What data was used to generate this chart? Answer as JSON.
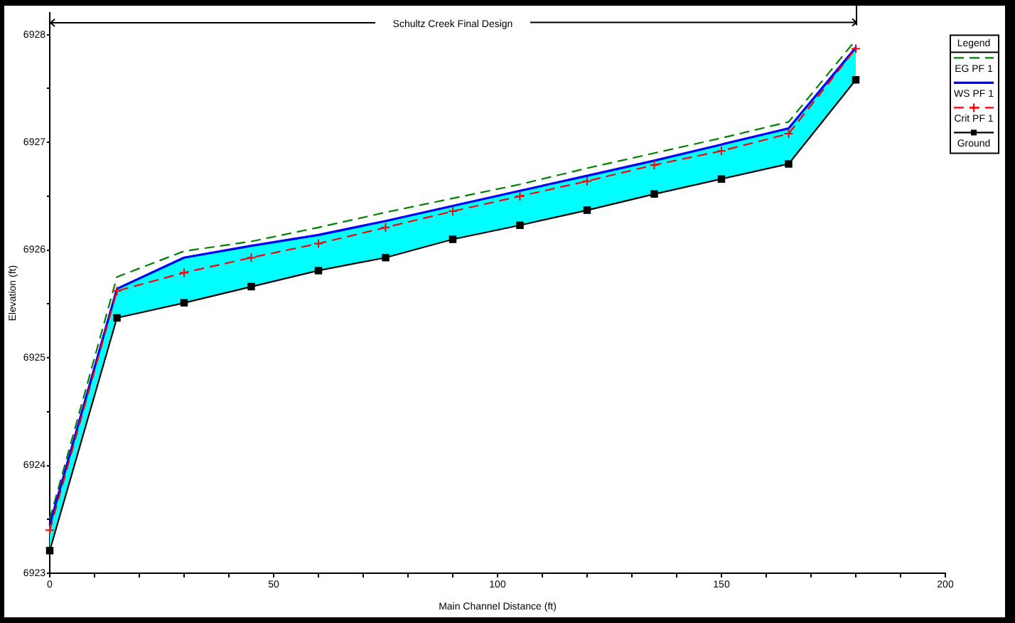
{
  "chart_data": {
    "type": "line",
    "title": "Schultz Creek Final Design",
    "xlabel": "Main Channel Distance (ft)",
    "ylabel": "Elevation (ft)",
    "legend_title": "Legend",
    "legend": "top right",
    "x": [
      0,
      15,
      30,
      45,
      60,
      75,
      90,
      105,
      120,
      135,
      150,
      165,
      180
    ],
    "series": [
      {
        "name": "EG PF 1",
        "color": "#008000",
        "line_style": "dashed",
        "values": [
          6923.5,
          6925.75,
          6925.99,
          6926.08,
          6926.21,
          6926.35,
          6926.48,
          6926.61,
          6926.76,
          6926.9,
          6927.04,
          6927.19,
          6927.95
        ]
      },
      {
        "name": "WS PF 1",
        "color": "#0000ff",
        "line_style": "solid",
        "values": [
          6923.45,
          6925.64,
          6925.93,
          6926.04,
          6926.14,
          6926.27,
          6926.41,
          6926.55,
          6926.69,
          6926.83,
          6926.98,
          6927.13,
          6927.88
        ],
        "lower": [
          6923.21,
          6925.37,
          6925.51,
          6925.66,
          6925.81,
          6925.93,
          6926.1,
          6926.23,
          6926.37,
          6926.52,
          6926.66,
          6926.8,
          6927.58
        ],
        "upper": [
          6923.45,
          6925.64,
          6925.93,
          6926.04,
          6926.14,
          6926.27,
          6926.41,
          6926.55,
          6926.69,
          6926.83,
          6926.98,
          6927.13,
          6927.88
        ]
      },
      {
        "name": "Crit PF 1",
        "color": "#ff0000",
        "line_style": "dashed",
        "marker": "cross",
        "values": [
          6923.4,
          6925.62,
          6925.79,
          6925.93,
          6926.06,
          6926.21,
          6926.36,
          6926.5,
          6926.64,
          6926.79,
          6926.92,
          6927.08,
          6927.87
        ]
      },
      {
        "name": "Ground",
        "color": "#000000",
        "line_style": "solid",
        "marker": "square",
        "values": [
          6923.21,
          6925.37,
          6925.51,
          6925.66,
          6925.81,
          6925.93,
          6926.1,
          6926.23,
          6926.37,
          6926.52,
          6926.66,
          6926.8,
          6927.58
        ]
      }
    ],
    "xlim": [
      0,
      200
    ],
    "xticks": [
      0,
      {
        "value": 10,
        "label": null
      },
      {
        "value": 20,
        "label": null
      },
      {
        "value": 30,
        "label": null
      },
      {
        "value": 40,
        "label": null
      },
      50,
      {
        "value": 60,
        "label": null
      },
      {
        "value": 70,
        "label": null
      },
      {
        "value": 80,
        "label": null
      },
      {
        "value": 90,
        "label": null
      },
      100,
      {
        "value": 110,
        "label": null
      },
      {
        "value": 120,
        "label": null
      },
      {
        "value": 130,
        "label": null
      },
      {
        "value": 140,
        "label": null
      },
      150,
      {
        "value": 160,
        "label": null
      },
      {
        "value": 170,
        "label": null
      },
      {
        "value": 180,
        "label": null
      },
      {
        "value": 190,
        "label": null
      },
      200
    ],
    "ylim": [
      6923,
      6928.2
    ],
    "yticks": [
      6923,
      {
        "value": 6923.5,
        "label": null
      },
      6924,
      {
        "value": 6924.5,
        "label": null
      },
      6925,
      {
        "value": 6925.5,
        "label": null
      },
      6926,
      {
        "value": 6926.5,
        "label": null
      },
      6927,
      {
        "value": 6927.5,
        "label": null
      },
      6928
    ]
  }
}
